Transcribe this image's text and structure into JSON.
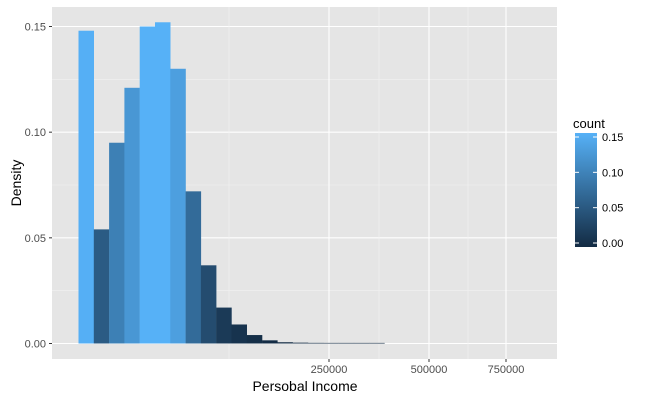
{
  "chart_data": {
    "type": "bar",
    "xlabel": "Persobal Income",
    "ylabel": "Density",
    "ylim": [
      0,
      0.15
    ],
    "y_ticks": [
      0.0,
      0.05,
      0.1,
      0.15
    ],
    "y_tick_labels": [
      "0.00",
      "0.05",
      "0.10",
      "0.15"
    ],
    "x_tick_labels": [
      "250000",
      "500000",
      "750000"
    ],
    "grid": true,
    "legend": {
      "title": "count",
      "placement": "right",
      "tick_labels": [
        "0.15",
        "0.10",
        "0.05",
        "0.00"
      ],
      "color_low": "#132b43",
      "color_high": "#56b1f7"
    },
    "bins": [
      {
        "density": 0.148,
        "count": 0.148
      },
      {
        "density": 0.054,
        "count": 0.054
      },
      {
        "density": 0.095,
        "count": 0.095
      },
      {
        "density": 0.121,
        "count": 0.121
      },
      {
        "density": 0.15,
        "count": 0.15
      },
      {
        "density": 0.152,
        "count": 0.152
      },
      {
        "density": 0.13,
        "count": 0.13
      },
      {
        "density": 0.072,
        "count": 0.072
      },
      {
        "density": 0.037,
        "count": 0.037
      },
      {
        "density": 0.017,
        "count": 0.017
      },
      {
        "density": 0.009,
        "count": 0.009
      },
      {
        "density": 0.004,
        "count": 0.004
      },
      {
        "density": 0.0015,
        "count": 0.0015
      },
      {
        "density": 0.0006,
        "count": 0.0006
      },
      {
        "density": 0.0004,
        "count": 0.0004
      },
      {
        "density": 0.0003,
        "count": 0.0003
      },
      {
        "density": 0.0002,
        "count": 0.0002
      },
      {
        "density": 0.0002,
        "count": 0.0002
      },
      {
        "density": 0.0001,
        "count": 0.0001
      },
      {
        "density": 0.0001,
        "count": 0.0001
      }
    ],
    "colors": {
      "panel_background": "#e5e5e5",
      "grid_major": "#ffffff",
      "grid_minor": "#f2f2f2"
    }
  }
}
